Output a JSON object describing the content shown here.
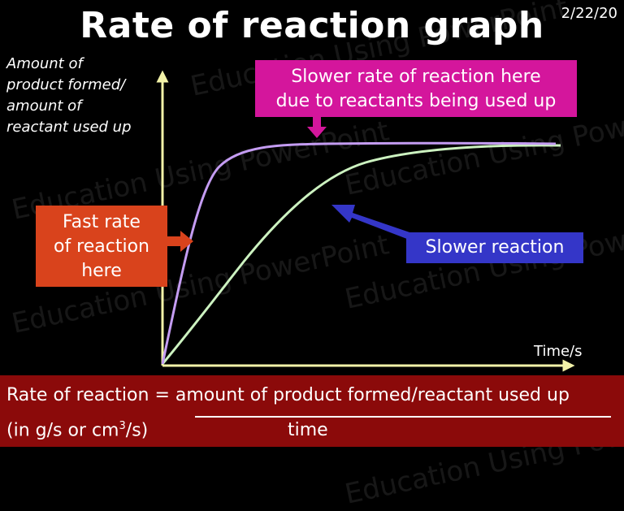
{
  "title": "Rate of reaction graph",
  "date": "2/22/20",
  "watermark": "Education Using PowerPoint",
  "axes": {
    "y_label_lines": [
      "Amount of",
      "product formed/",
      "amount of",
      "reactant used up"
    ],
    "x_label": "Time/s"
  },
  "callouts": {
    "top_lines": [
      "Slower rate of reaction here",
      "due to reactants being used up"
    ],
    "fast_lines": [
      "Fast rate",
      "of reaction",
      "here"
    ],
    "slow": "Slower reaction"
  },
  "formula": {
    "main": "Rate of reaction = amount of product formed/reactant used up",
    "units_prefix": "(in g/s or cm",
    "units_sup": "3",
    "units_suffix": "/s)",
    "denominator": "time"
  },
  "colors": {
    "fast_curve": "#c49cf2",
    "slow_curve": "#ccf2c0",
    "axes": "#f2f2a8",
    "top_box": "#d4169c",
    "fast_box": "#d9431c",
    "slow_box": "#3436c8",
    "formula_bar": "#8b0a0a"
  }
}
